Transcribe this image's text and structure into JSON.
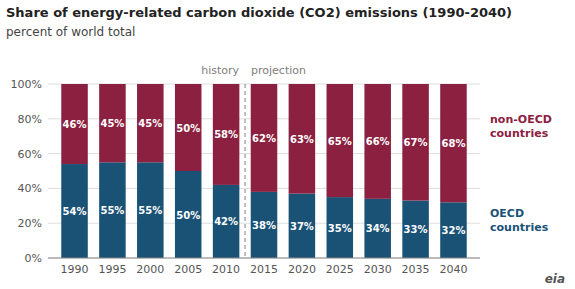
{
  "chart_data": {
    "type": "bar",
    "stacked": true,
    "title": "Share of energy-related carbon dioxide (CO2) emissions (1990-2040)",
    "subtitle": "percent of world total",
    "x": [
      1990,
      1995,
      2000,
      2005,
      2010,
      2015,
      2020,
      2025,
      2030,
      2035,
      2040
    ],
    "series": [
      {
        "name": "OECD\ncountries",
        "color": "#1a5276",
        "values": [
          54,
          55,
          55,
          50,
          42,
          38,
          37,
          35,
          34,
          33,
          32
        ],
        "value_labels": [
          "54%",
          "55%",
          "55%",
          "50%",
          "42%",
          "38%",
          "37%",
          "35%",
          "34%",
          "33%",
          "32%"
        ]
      },
      {
        "name": "non-OECD\ncountries",
        "color": "#8b2040",
        "values": [
          46,
          45,
          45,
          50,
          58,
          62,
          63,
          65,
          66,
          67,
          68
        ],
        "value_labels": [
          "46%",
          "45%",
          "45%",
          "50%",
          "58%",
          "62%",
          "63%",
          "65%",
          "66%",
          "67%",
          "68%"
        ]
      }
    ],
    "xlim": [
      1986.5,
      2043.5
    ],
    "xticks": [
      1990,
      1995,
      2000,
      2005,
      2010,
      2015,
      2020,
      2025,
      2030,
      2035,
      2040
    ],
    "ylim": [
      0,
      100
    ],
    "yticks": [
      {
        "value": 0,
        "label": "0%"
      },
      {
        "value": 20,
        "label": "20%"
      },
      {
        "value": 40,
        "label": "40%"
      },
      {
        "value": 60,
        "label": "60%"
      },
      {
        "value": 80,
        "label": "80%"
      },
      {
        "value": 100,
        "label": "100%"
      }
    ],
    "grid": true,
    "data_labels": true,
    "annotations": [
      {
        "text": "history",
        "x": 2012.5,
        "side": "left"
      },
      {
        "text": "projection",
        "x": 2012.5,
        "side": "right"
      },
      {
        "text": "eia"
      }
    ]
  }
}
